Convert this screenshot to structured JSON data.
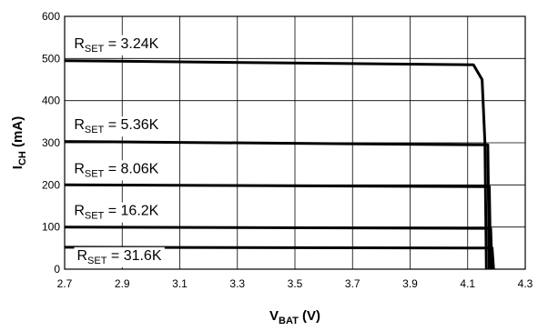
{
  "chart_data": {
    "type": "line",
    "xlabel": {
      "main": "V",
      "sub": "BAT",
      "unit": " (V)"
    },
    "ylabel": {
      "main": "I",
      "sub": "CH",
      "unit": " (mA)"
    },
    "xlim": [
      2.7,
      4.3
    ],
    "ylim": [
      0,
      600
    ],
    "x_ticks": [
      "2.7",
      "2.9",
      "3.1",
      "3.3",
      "3.5",
      "3.7",
      "3.9",
      "4.1",
      "4.3"
    ],
    "y_ticks": [
      "0",
      "100",
      "200",
      "300",
      "400",
      "500",
      "600"
    ],
    "grid": true,
    "series": [
      {
        "annotation": {
          "main": "R",
          "sub": "SET",
          "value": " = 3.24K"
        },
        "annotation_at": {
          "x": 2.72,
          "y": 525
        },
        "points": [
          [
            2.7,
            495
          ],
          [
            4.12,
            485
          ],
          [
            4.15,
            450
          ],
          [
            4.16,
            300
          ],
          [
            4.165,
            0
          ]
        ]
      },
      {
        "annotation": {
          "main": "R",
          "sub": "SET",
          "value": " = 5.36K"
        },
        "annotation_at": {
          "x": 2.72,
          "y": 332
        },
        "points": [
          [
            2.7,
            303
          ],
          [
            4.17,
            295
          ],
          [
            4.175,
            0
          ]
        ]
      },
      {
        "annotation": {
          "main": "R",
          "sub": "SET",
          "value": " = 8.06K"
        },
        "annotation_at": {
          "x": 2.72,
          "y": 228
        },
        "points": [
          [
            2.7,
            200
          ],
          [
            4.175,
            196
          ],
          [
            4.18,
            0
          ]
        ]
      },
      {
        "annotation": {
          "main": "R",
          "sub": "SET",
          "value": " = 16.2K"
        },
        "annotation_at": {
          "x": 2.72,
          "y": 128
        },
        "points": [
          [
            2.7,
            100
          ],
          [
            4.18,
            97
          ],
          [
            4.185,
            0
          ]
        ]
      },
      {
        "annotation": {
          "main": "R",
          "sub": "SET",
          "value": " = 31.6K"
        },
        "annotation_at": {
          "x": 2.73,
          "y": 22
        },
        "points": [
          [
            2.7,
            52
          ],
          [
            4.185,
            50
          ],
          [
            4.19,
            0
          ]
        ]
      }
    ]
  }
}
